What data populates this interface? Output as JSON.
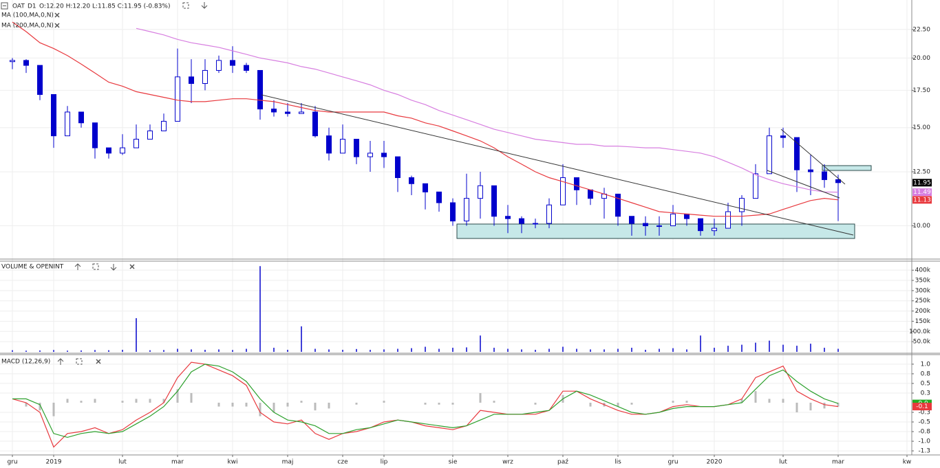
{
  "chart_data": [
    {
      "type": "candlestick",
      "title": "OAT",
      "subtitle": "D1",
      "quote": "O:12.20  H:12.20  L:11.85  C:11.95  (-0.83%)",
      "color": "#0000cc",
      "log_scale": true,
      "grid": true,
      "ylim": [
        8.74,
        25.27
      ],
      "yticks": [
        {
          "value": 10,
          "label": "10.00"
        },
        {
          "value": 12.5,
          "label": "12.50"
        },
        {
          "value": 15,
          "label": "15.00"
        },
        {
          "value": 17.5,
          "label": "17.50"
        },
        {
          "value": 20,
          "label": "20.00"
        },
        {
          "value": 22.5,
          "label": "22.50"
        }
      ],
      "open": [
        19.7,
        19.8,
        19.4,
        17.2,
        14.5,
        16.0,
        15.3,
        13.8,
        13.5,
        13.8,
        14.3,
        14.8,
        15.4,
        18.5,
        18.0,
        19.0,
        19.8,
        19.4,
        19.0,
        16.2,
        16.0,
        15.9,
        16.0,
        14.5,
        13.5,
        14.3,
        13.3,
        13.5,
        13.3,
        12.2,
        11.9,
        11.5,
        11.0,
        10.2,
        11.2,
        11.8,
        10.4,
        10.3,
        10.1,
        10.1,
        10.9,
        12.2,
        11.6,
        11.2,
        11.4,
        10.4,
        10.1,
        10.0,
        10.0,
        10.5,
        10.3,
        9.8,
        9.9,
        10.6,
        11.2,
        12.4,
        14.5,
        14.4,
        12.6,
        12.5,
        12.1
      ],
      "high": [
        20.0,
        19.9,
        19.4,
        17.2,
        16.4,
        16.0,
        15.3,
        13.8,
        14.6,
        15.2,
        15.2,
        15.9,
        20.8,
        19.9,
        19.9,
        20.2,
        21.0,
        19.6,
        19.0,
        16.8,
        16.6,
        16.6,
        16.4,
        15.0,
        15.2,
        14.3,
        14.2,
        14.2,
        13.3,
        12.3,
        11.9,
        11.5,
        11.2,
        12.4,
        12.5,
        11.8,
        10.9,
        10.4,
        10.3,
        11.2,
        12.9,
        12.2,
        11.6,
        11.7,
        11.4,
        10.4,
        10.4,
        10.4,
        10.9,
        10.5,
        10.3,
        10.3,
        11.0,
        11.35,
        12.9,
        15.0,
        15.0,
        14.4,
        13.4,
        12.9,
        12.35
      ],
      "low": [
        19.1,
        18.8,
        16.8,
        13.8,
        14.5,
        15.0,
        13.2,
        13.2,
        13.4,
        13.8,
        14.3,
        14.8,
        15.4,
        16.6,
        17.5,
        18.8,
        18.8,
        18.8,
        15.5,
        15.7,
        15.7,
        15.9,
        14.4,
        13.1,
        13.5,
        12.9,
        12.5,
        12.7,
        11.5,
        11.35,
        10.7,
        10.6,
        10.0,
        10.0,
        10.3,
        10.0,
        9.7,
        9.7,
        9.9,
        9.9,
        10.9,
        10.9,
        10.9,
        10.3,
        10.0,
        9.6,
        9.6,
        9.6,
        10.0,
        10.0,
        9.6,
        9.6,
        9.9,
        10.0,
        11.2,
        12.5,
        13.8,
        11.5,
        11.35,
        11.7,
        10.2
      ],
      "close": [
        19.8,
        19.4,
        17.2,
        14.5,
        16.0,
        15.3,
        13.8,
        13.5,
        13.8,
        14.3,
        14.8,
        15.4,
        18.5,
        18.0,
        19.0,
        19.8,
        19.4,
        19.0,
        16.2,
        16.0,
        15.9,
        16.0,
        14.5,
        13.5,
        14.3,
        13.3,
        13.5,
        13.3,
        12.2,
        11.9,
        11.5,
        11.0,
        10.2,
        11.2,
        11.8,
        10.4,
        10.3,
        10.1,
        10.1,
        10.9,
        12.2,
        11.6,
        11.2,
        11.4,
        10.4,
        10.1,
        10.0,
        10.0,
        10.5,
        10.3,
        9.8,
        9.9,
        10.6,
        11.2,
        12.4,
        14.5,
        14.4,
        12.6,
        12.5,
        12.1,
        11.95
      ],
      "series": [
        {
          "name": "MA (100,MA,0,N)",
          "color": "#e8383d",
          "values": [
            23.2,
            22.3,
            21.3,
            20.8,
            20.2,
            19.5,
            18.8,
            18.1,
            17.8,
            17.4,
            17.2,
            17.0,
            16.8,
            16.7,
            16.7,
            16.8,
            16.9,
            16.9,
            16.8,
            16.7,
            16.5,
            16.3,
            16.1,
            16.0,
            16.0,
            16.0,
            16.0,
            16.0,
            15.75,
            15.6,
            15.3,
            15.1,
            14.8,
            14.5,
            14.2,
            13.8,
            13.3,
            12.9,
            12.5,
            12.2,
            12.0,
            11.8,
            11.6,
            11.4,
            11.2,
            11.0,
            10.8,
            10.6,
            10.55,
            10.5,
            10.45,
            10.4,
            10.4,
            10.4,
            10.45,
            10.5,
            10.7,
            10.9,
            11.1,
            11.2,
            11.13
          ]
        },
        {
          "name": "MA (200,MA,0,N)",
          "color": "#d77ee0",
          "values": [
            null,
            null,
            null,
            null,
            null,
            null,
            null,
            null,
            null,
            22.6,
            22.3,
            22.0,
            21.6,
            21.3,
            21.1,
            20.9,
            20.6,
            20.3,
            20.0,
            19.8,
            19.6,
            19.3,
            19.1,
            18.8,
            18.5,
            18.2,
            17.9,
            17.5,
            17.2,
            16.8,
            16.5,
            16.1,
            15.8,
            15.5,
            15.2,
            14.9,
            14.7,
            14.5,
            14.3,
            14.2,
            14.1,
            14.0,
            14.0,
            13.9,
            13.9,
            13.85,
            13.8,
            13.8,
            13.7,
            13.6,
            13.5,
            13.3,
            13.0,
            12.7,
            12.35,
            12.1,
            11.9,
            11.75,
            11.6,
            11.5,
            11.49
          ]
        }
      ],
      "current_labels": [
        {
          "value": 11.95,
          "color": "#000000"
        },
        {
          "value": 11.49,
          "color": "#d77ee0"
        },
        {
          "value": 11.13,
          "color": "#e8383d"
        }
      ]
    },
    {
      "type": "bar",
      "title": "VOLUME & OPENINT",
      "color": "#0000cc",
      "grid": true,
      "ylim": [
        0,
        441000
      ],
      "yticks": [
        {
          "value": 50000,
          "label": "50.0k"
        },
        {
          "value": 100000,
          "label": "100.0k"
        },
        {
          "value": 150000,
          "label": "150k"
        },
        {
          "value": 200000,
          "label": "200k"
        },
        {
          "value": 250000,
          "label": "250k"
        },
        {
          "value": 300000,
          "label": "300k"
        },
        {
          "value": 350000,
          "label": "350k"
        },
        {
          "value": 400000,
          "label": "400k"
        }
      ],
      "values": [
        8000,
        6000,
        7000,
        9000,
        6000,
        7000,
        9000,
        8000,
        10000,
        165000,
        8000,
        9000,
        15000,
        12000,
        10000,
        12000,
        9000,
        15000,
        420000,
        20000,
        10000,
        125000,
        15000,
        12000,
        10000,
        14000,
        10000,
        12000,
        15000,
        18000,
        25000,
        15000,
        20000,
        22000,
        80000,
        20000,
        15000,
        12000,
        10000,
        15000,
        25000,
        15000,
        12000,
        12000,
        15000,
        20000,
        10000,
        15000,
        18000,
        12000,
        80000,
        20000,
        30000,
        35000,
        45000,
        55000,
        35000,
        30000,
        40000,
        20000,
        15000
      ]
    },
    {
      "type": "line",
      "title": "MACD (12,26,9)",
      "grid": true,
      "ylim": [
        -1.32,
        1.23
      ],
      "yticks": [
        {
          "value": -1.25,
          "label": "-1.3"
        },
        {
          "value": -1,
          "label": "-1.0"
        },
        {
          "value": -0.75,
          "label": "-0.8"
        },
        -0.5,
        {
          "value": -0.25,
          "label": "-0.3"
        },
        {
          "value": 0.25,
          "label": "0.3"
        },
        0.5,
        {
          "value": 0.75,
          "label": "0.8"
        },
        {
          "value": 1,
          "label": "1.0"
        }
      ],
      "categories": [
        "gru",
        null,
        null,
        "2019",
        null,
        null,
        null,
        null,
        "lut",
        null,
        null,
        null,
        "mar",
        null,
        null,
        null,
        "kwi",
        null,
        null,
        null,
        "maj",
        null,
        null,
        null,
        "cze",
        null,
        null,
        "lip",
        null,
        null,
        null,
        null,
        "sie",
        null,
        null,
        null,
        "wrz",
        null,
        null,
        null,
        "paź",
        null,
        null,
        null,
        "lis",
        null,
        null,
        null,
        "gru",
        null,
        null,
        "2020",
        null,
        null,
        null,
        null,
        "lut",
        null,
        null,
        null,
        "mar",
        null,
        null,
        null,
        null,
        "kw"
      ],
      "series": [
        {
          "color": "#bbbbbb",
          "style": "bar",
          "values": [
            0.0,
            -0.1,
            -0.2,
            -0.35,
            0.1,
            0.05,
            0.1,
            0.0,
            0.05,
            0.1,
            0.1,
            0.1,
            0.35,
            0.25,
            0.0,
            -0.1,
            -0.1,
            -0.1,
            -0.35,
            -0.25,
            -0.1,
            0.05,
            -0.2,
            -0.15,
            0.0,
            -0.05,
            0.0,
            0.05,
            0.0,
            0.0,
            -0.05,
            -0.05,
            -0.05,
            0.0,
            0.25,
            0.05,
            0.0,
            0.0,
            -0.05,
            0.0,
            0.2,
            0.0,
            -0.1,
            -0.1,
            -0.1,
            -0.05,
            0.0,
            0.0,
            0.05,
            0.05,
            0.0,
            0.0,
            0.0,
            0.1,
            0.3,
            0.1,
            0.1,
            -0.25,
            -0.2,
            -0.15,
            -0.1,
            null,
            null,
            null,
            null,
            null
          ]
        },
        {
          "color": "#e8383d",
          "values": [
            0.1,
            0.0,
            -0.25,
            -1.15,
            -0.8,
            -0.75,
            -0.65,
            -0.8,
            -0.7,
            -0.45,
            -0.25,
            0.0,
            0.65,
            1.05,
            1.0,
            0.85,
            0.7,
            0.45,
            -0.25,
            -0.5,
            -0.55,
            -0.45,
            -0.8,
            -0.95,
            -0.8,
            -0.75,
            -0.65,
            -0.5,
            -0.45,
            -0.5,
            -0.6,
            -0.65,
            -0.7,
            -0.6,
            -0.2,
            -0.25,
            -0.3,
            -0.3,
            -0.3,
            -0.2,
            0.3,
            0.3,
            0.1,
            -0.05,
            -0.2,
            -0.3,
            -0.3,
            -0.25,
            -0.1,
            -0.05,
            -0.1,
            -0.1,
            -0.05,
            0.1,
            0.65,
            0.8,
            0.95,
            0.3,
            0.1,
            -0.05,
            -0.1,
            null,
            null,
            null,
            null,
            null
          ]
        },
        {
          "color": "#2ca02c",
          "values": [
            0.1,
            0.1,
            -0.05,
            -0.8,
            -0.9,
            -0.8,
            -0.75,
            -0.8,
            -0.75,
            -0.55,
            -0.35,
            -0.1,
            0.3,
            0.8,
            1.0,
            0.95,
            0.8,
            0.55,
            0.1,
            -0.25,
            -0.45,
            -0.5,
            -0.6,
            -0.8,
            -0.8,
            -0.7,
            -0.65,
            -0.55,
            -0.45,
            -0.5,
            -0.55,
            -0.6,
            -0.65,
            -0.6,
            -0.45,
            -0.3,
            -0.3,
            -0.3,
            -0.25,
            -0.2,
            0.1,
            0.3,
            0.2,
            0.05,
            -0.1,
            -0.25,
            -0.3,
            -0.25,
            -0.15,
            -0.1,
            -0.1,
            -0.1,
            -0.05,
            0.0,
            0.35,
            0.7,
            0.85,
            0.55,
            0.3,
            0.1,
            -0.02,
            null,
            null,
            null,
            null,
            null
          ]
        }
      ],
      "current_labels": [
        {
          "value": -0.02,
          "label": "-0.0",
          "color": "#22aa22"
        },
        {
          "value": -0.1,
          "color": "#e8383d"
        }
      ]
    }
  ]
}
